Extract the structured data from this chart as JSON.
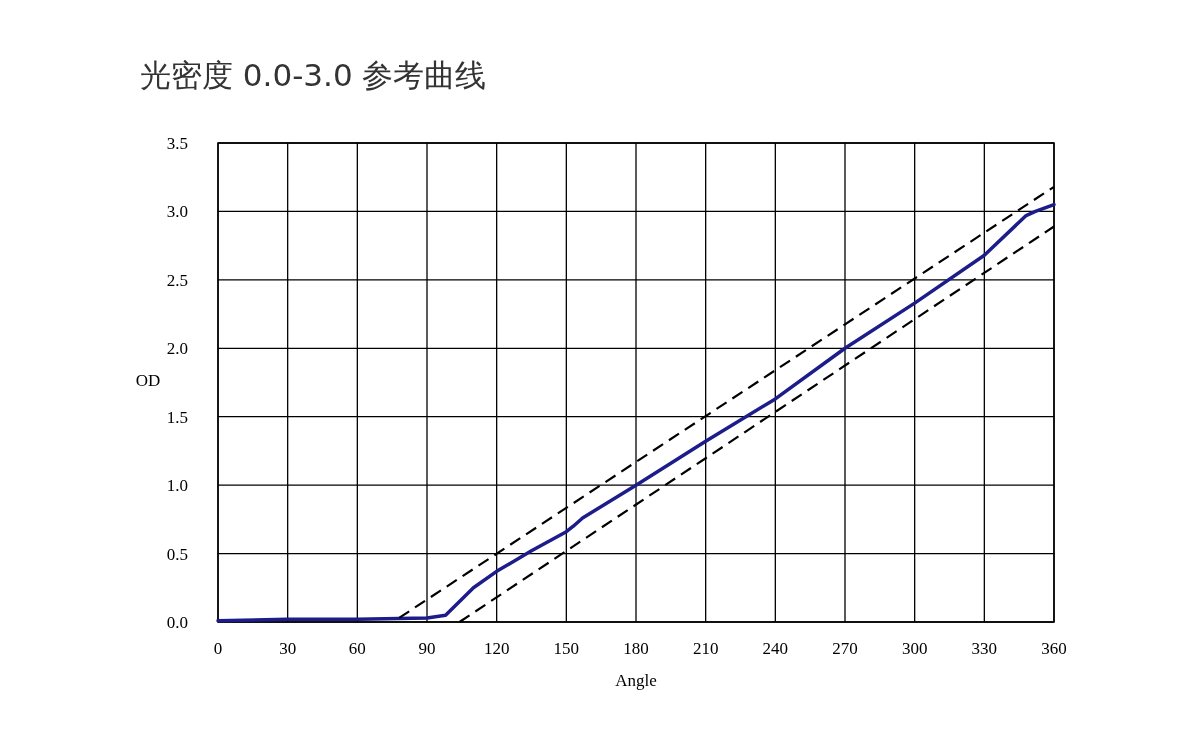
{
  "chart_data": {
    "type": "line",
    "title": "光密度 0.0-3.0 参考曲线",
    "xlabel": "Angle",
    "ylabel": "OD",
    "xlim": [
      0,
      360
    ],
    "xticks": [
      0,
      30,
      60,
      90,
      120,
      150,
      180,
      210,
      240,
      270,
      300,
      330,
      360
    ],
    "ylim": [
      0,
      3.5
    ],
    "yticks": [
      {
        "value": 0,
        "label": "0.0"
      },
      {
        "value": 0.5,
        "label": "0.5"
      },
      {
        "value": 1,
        "label": "1.0"
      },
      {
        "value": 1.5,
        "label": "1.5"
      },
      {
        "value": 2,
        "label": "2.0"
      },
      {
        "value": 2.5,
        "label": "2.5"
      },
      {
        "value": 3,
        "label": "3.0"
      },
      {
        "value": 3.5,
        "label": "3.5"
      }
    ],
    "grid": true,
    "series": [
      {
        "color": "#1c1c8a",
        "line_style": "solid",
        "x": [
          0,
          30,
          60,
          90,
          98,
          110,
          120,
          135,
          150,
          153,
          157,
          180,
          210,
          240,
          270,
          300,
          330,
          348,
          352,
          360
        ],
        "values": [
          0.01,
          0.02,
          0.02,
          0.03,
          0.05,
          0.25,
          0.37,
          0.52,
          0.66,
          0.7,
          0.76,
          1.0,
          1.32,
          1.63,
          2.0,
          2.33,
          2.68,
          2.97,
          3.0,
          3.05
        ]
      },
      {
        "color": "#000000",
        "line_style": "dashed",
        "x": [
          78,
          360
        ],
        "values": [
          0.03,
          3.18
        ]
      },
      {
        "color": "#000000",
        "line_style": "dashed",
        "x": [
          104,
          360
        ],
        "values": [
          0,
          2.89
        ]
      }
    ]
  }
}
